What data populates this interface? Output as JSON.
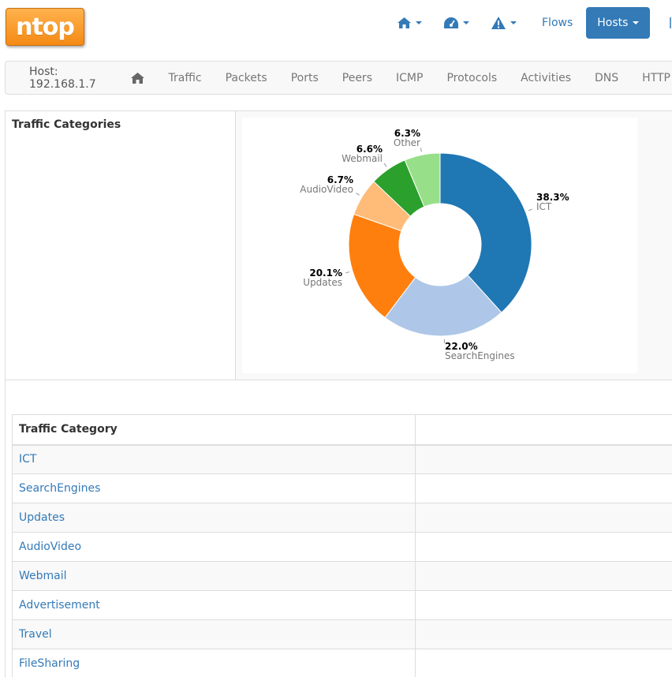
{
  "app": {
    "logo_text": "ntop"
  },
  "topnav": {
    "home_icon": "home-icon",
    "dashboard_icon": "dashboard-icon",
    "alert_icon": "alert-icon",
    "flows_label": "Flows",
    "hosts_label": "Hosts"
  },
  "subnav": {
    "host_label": "Host: 192.168.1.7",
    "items": [
      "Traffic",
      "Packets",
      "Ports",
      "Peers",
      "ICMP",
      "Protocols",
      "Activities",
      "DNS",
      "HTTP"
    ]
  },
  "panel": {
    "title": "Traffic Categories"
  },
  "colors": {
    "ICT": "#1f77b4",
    "SearchEngines": "#aec7e8",
    "Updates": "#ff7f0e",
    "AudioVideo": "#ffbb78",
    "Webmail": "#2ca02c",
    "Other": "#98df8a"
  },
  "chart_data": {
    "type": "pie",
    "categories": [
      "ICT",
      "SearchEngines",
      "Updates",
      "AudioVideo",
      "Webmail",
      "Other"
    ],
    "values": [
      38.3,
      22.0,
      20.1,
      6.7,
      6.6,
      6.3
    ],
    "value_labels": [
      "38.3%",
      "22.0%",
      "20.1%",
      "6.7%",
      "6.6%",
      "6.3%"
    ],
    "donut": true
  },
  "table": {
    "header": "Traffic Category",
    "rows": [
      "ICT",
      "SearchEngines",
      "Updates",
      "AudioVideo",
      "Webmail",
      "Advertisement",
      "Travel",
      "FileSharing"
    ]
  }
}
